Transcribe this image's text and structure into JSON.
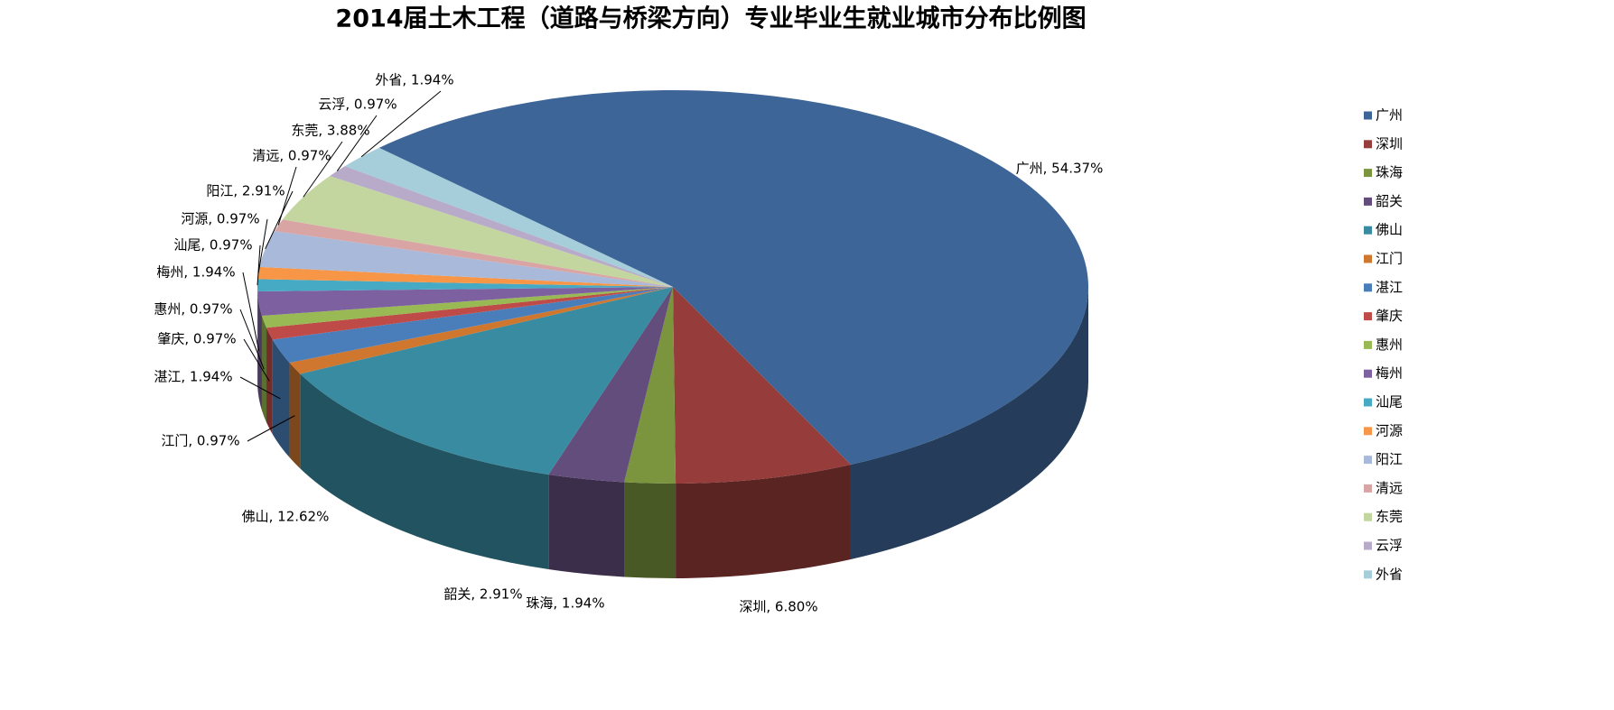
{
  "chart_data": {
    "type": "pie3d",
    "title": "2014届土木工程（道路与桥梁方向）专业毕业生就业城市分布比例图",
    "categories": [
      "广州",
      "深圳",
      "珠海",
      "韶关",
      "佛山",
      "江门",
      "湛江",
      "肇庆",
      "惠州",
      "梅州",
      "汕尾",
      "河源",
      "阳江",
      "清远",
      "东莞",
      "云浮",
      "外省"
    ],
    "values": [
      54.37,
      6.8,
      1.94,
      2.91,
      12.62,
      0.97,
      1.94,
      0.97,
      0.97,
      1.94,
      0.97,
      0.97,
      2.91,
      0.97,
      3.88,
      0.97,
      1.94
    ],
    "value_labels": [
      "广州, 54.37%",
      "深圳, 6.80%",
      "珠海, 1.94%",
      "韶关, 2.91%",
      "佛山, 12.62%",
      "江门, 0.97%",
      "湛江, 1.94%",
      "肇庆, 0.97%",
      "惠州, 0.97%",
      "梅州, 1.94%",
      "汕尾, 0.97%",
      "河源, 0.97%",
      "阳江, 2.91%",
      "清远, 0.97%",
      "东莞, 3.88%",
      "云浮, 0.97%",
      "外省, 1.94%"
    ],
    "colors": [
      "#3e6597",
      "#963c3a",
      "#7a953d",
      "#634d7d",
      "#388ba0",
      "#d0772f",
      "#4a7ebb",
      "#be4b48",
      "#98b954",
      "#7d60a0",
      "#46aac5",
      "#f79646",
      "#a9b9d9",
      "#d9a5a4",
      "#c4d6a0",
      "#b8abc9",
      "#a5cdda"
    ],
    "legend": "right"
  }
}
